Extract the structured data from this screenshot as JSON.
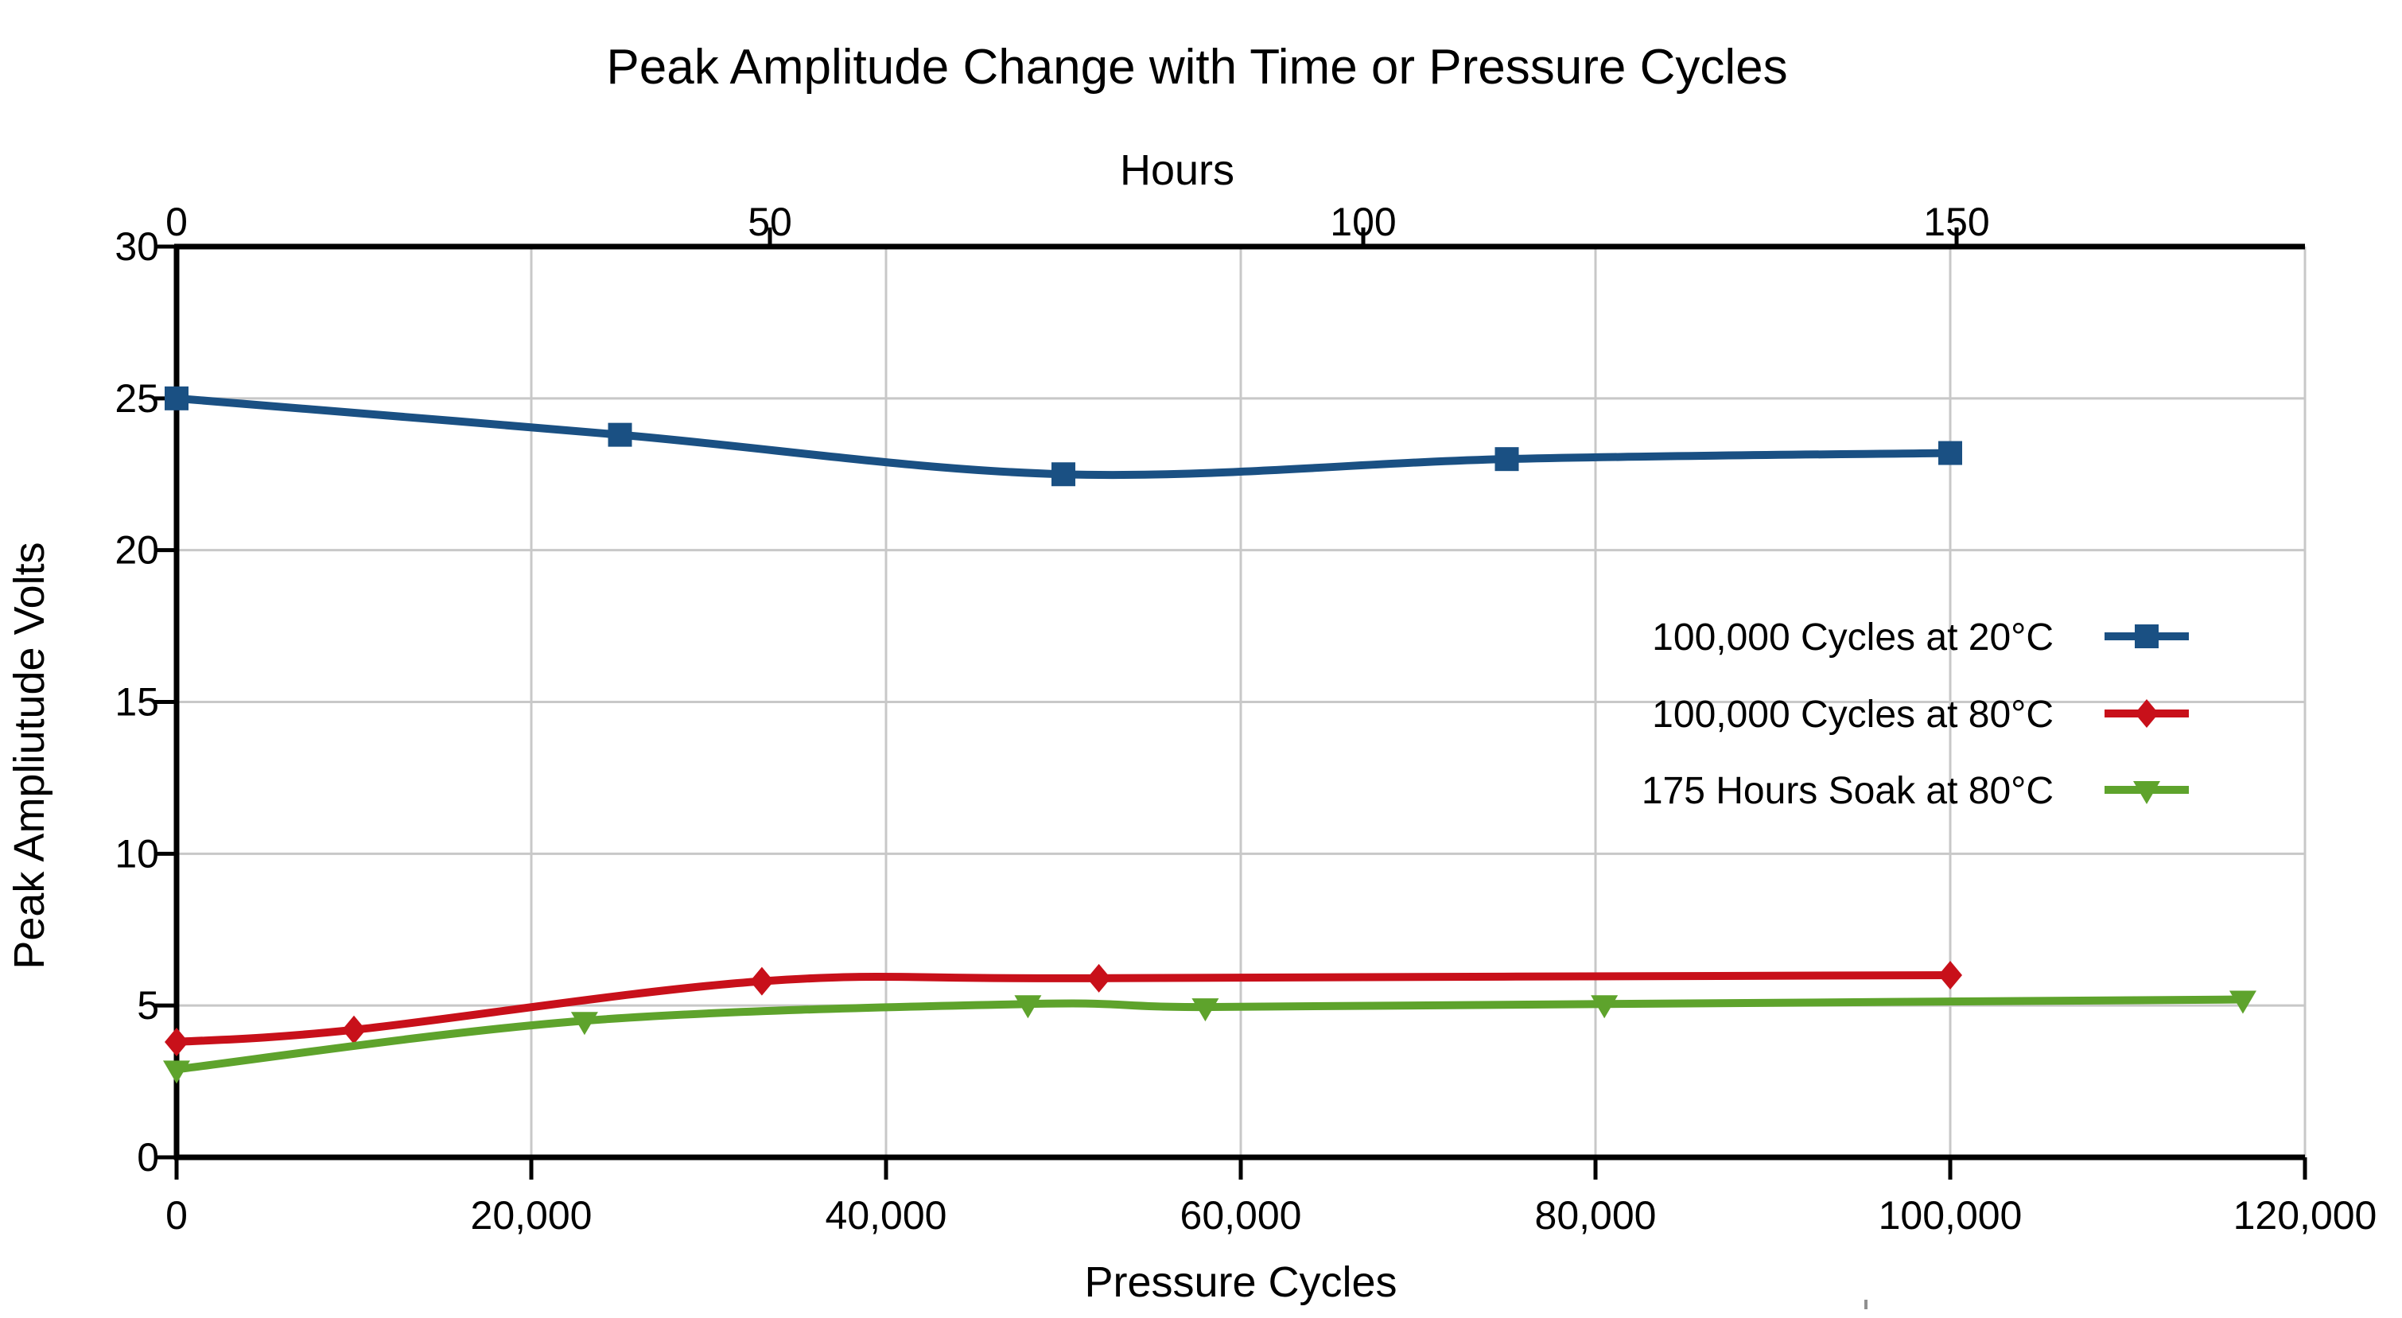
{
  "chart_data": {
    "type": "line",
    "title": "Peak Amplitude Change with Time or Pressure Cycles",
    "xlabel": "Pressure Cycles",
    "x2label": "Hours",
    "ylabel": "Peak Ampliutude Volts",
    "xlim": [
      0,
      120000
    ],
    "ylim": [
      0,
      30
    ],
    "grid": "on",
    "legend_position": "middle-right",
    "xticks": {
      "values": [
        0,
        20000,
        40000,
        60000,
        80000,
        100000,
        120000
      ],
      "labels": [
        "0",
        "20,000",
        "40,000",
        "60,000",
        "80,000",
        "100,000",
        "120,000"
      ]
    },
    "x2ticks": {
      "values_hours": [
        0,
        50,
        100,
        150
      ],
      "labels": [
        "0",
        "50",
        "100",
        "150"
      ],
      "cycles_per_hour": 666.67
    },
    "yticks": {
      "values": [
        0,
        5,
        10,
        15,
        20,
        25,
        30
      ],
      "labels": [
        "0",
        "5",
        "10",
        "15",
        "20",
        "25",
        "30"
      ]
    },
    "series": [
      {
        "name": "100,000 Cycles at 20°C",
        "color": "#1A5083",
        "marker": "square",
        "x": [
          0,
          25000,
          50000,
          75000,
          100000
        ],
        "y": [
          25.0,
          23.8,
          22.5,
          23.0,
          23.2
        ]
      },
      {
        "name": "100,000 Cycles at 80°C",
        "color": "#C8101A",
        "marker": "diamond",
        "x": [
          0,
          10000,
          33000,
          52000,
          100000
        ],
        "y": [
          3.8,
          4.2,
          5.8,
          5.9,
          6.0
        ]
      },
      {
        "name": "175 Hours Soak at 80°C",
        "color": "#5EA32C",
        "marker": "triangle-down",
        "x": [
          0,
          23000,
          48000,
          58000,
          80500,
          116500
        ],
        "y": [
          2.9,
          4.5,
          5.05,
          4.95,
          5.05,
          5.2
        ]
      }
    ],
    "gridline_color": "#C8C8C8",
    "axis_color": "#000000"
  }
}
